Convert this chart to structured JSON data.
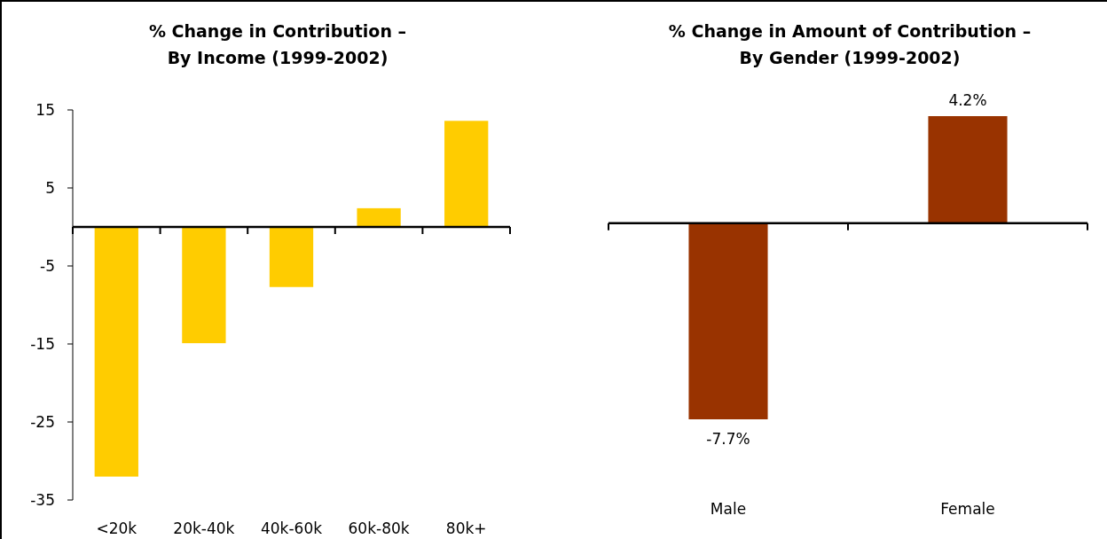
{
  "chart_data": [
    {
      "type": "bar",
      "title": "% Change in Contribution –\nBy Income (1999-2002)",
      "categories": [
        "<20k",
        "20k-40k",
        "40k-60k",
        "60k-80k",
        "80k+"
      ],
      "values": [
        -32.0,
        -14.9,
        -7.7,
        2.4,
        13.6
      ],
      "color": "#ffcc00",
      "ylim": [
        -35,
        15
      ],
      "yticks": [
        15,
        5,
        -5,
        -15,
        -25,
        -35
      ]
    },
    {
      "type": "bar",
      "title": "% Change in Amount of Contribution –\nBy Gender (1999-2002)",
      "categories": [
        "Male",
        "Female"
      ],
      "values": [
        -7.7,
        4.2
      ],
      "color": "#993300",
      "value_labels": [
        "-7.7%",
        "4.2%"
      ]
    }
  ]
}
